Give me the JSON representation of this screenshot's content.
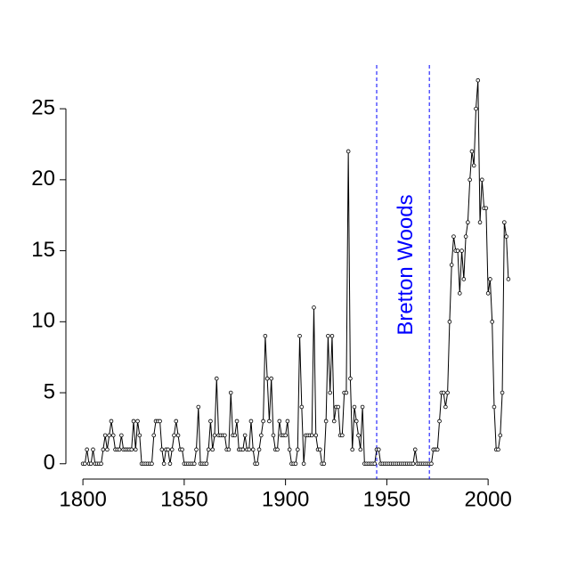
{
  "chart_data": {
    "type": "line",
    "x": [
      1800,
      1801,
      1802,
      1803,
      1804,
      1805,
      1806,
      1807,
      1808,
      1809,
      1810,
      1811,
      1812,
      1813,
      1814,
      1815,
      1816,
      1817,
      1818,
      1819,
      1820,
      1821,
      1822,
      1823,
      1824,
      1825,
      1826,
      1827,
      1828,
      1829,
      1830,
      1831,
      1832,
      1833,
      1834,
      1835,
      1836,
      1837,
      1838,
      1839,
      1840,
      1841,
      1842,
      1843,
      1844,
      1845,
      1846,
      1847,
      1848,
      1849,
      1850,
      1851,
      1852,
      1853,
      1854,
      1855,
      1856,
      1857,
      1858,
      1859,
      1860,
      1861,
      1862,
      1863,
      1864,
      1865,
      1866,
      1867,
      1868,
      1869,
      1870,
      1871,
      1872,
      1873,
      1874,
      1875,
      1876,
      1877,
      1878,
      1879,
      1880,
      1881,
      1882,
      1883,
      1884,
      1885,
      1886,
      1887,
      1888,
      1889,
      1890,
      1891,
      1892,
      1893,
      1894,
      1895,
      1896,
      1897,
      1898,
      1899,
      1900,
      1901,
      1902,
      1903,
      1904,
      1905,
      1906,
      1907,
      1908,
      1909,
      1910,
      1911,
      1912,
      1913,
      1914,
      1915,
      1916,
      1917,
      1918,
      1919,
      1920,
      1921,
      1922,
      1923,
      1924,
      1925,
      1926,
      1927,
      1928,
      1929,
      1930,
      1931,
      1932,
      1933,
      1934,
      1935,
      1936,
      1937,
      1938,
      1939,
      1940,
      1941,
      1942,
      1943,
      1944,
      1945,
      1946,
      1947,
      1948,
      1949,
      1950,
      1951,
      1952,
      1953,
      1954,
      1955,
      1956,
      1957,
      1958,
      1959,
      1960,
      1961,
      1962,
      1963,
      1964,
      1965,
      1966,
      1967,
      1968,
      1969,
      1970,
      1971,
      1972,
      1973,
      1974,
      1975,
      1976,
      1977,
      1978,
      1979,
      1980,
      1981,
      1982,
      1983,
      1984,
      1985,
      1986,
      1987,
      1988,
      1989,
      1990,
      1991,
      1992,
      1993,
      1994,
      1995,
      1996,
      1997,
      1998,
      1999,
      2000,
      2001,
      2002,
      2003,
      2004,
      2005,
      2006,
      2007,
      2008,
      2009,
      2010
    ],
    "values": [
      0,
      0,
      1,
      0,
      0,
      1,
      0,
      0,
      0,
      0,
      1,
      2,
      1,
      2,
      3,
      2,
      1,
      1,
      1,
      2,
      1,
      1,
      1,
      1,
      1,
      3,
      1,
      3,
      2,
      0,
      0,
      0,
      0,
      0,
      0,
      2,
      3,
      3,
      3,
      1,
      0,
      1,
      1,
      0,
      1,
      2,
      3,
      2,
      1,
      1,
      0,
      0,
      0,
      0,
      0,
      0,
      1,
      4,
      0,
      0,
      0,
      0,
      1,
      3,
      1,
      2,
      6,
      2,
      2,
      2,
      2,
      1,
      1,
      5,
      2,
      2,
      3,
      1,
      1,
      1,
      2,
      1,
      1,
      3,
      1,
      0,
      0,
      1,
      2,
      3,
      9,
      6,
      3,
      6,
      2,
      1,
      1,
      3,
      2,
      2,
      2,
      3,
      1,
      0,
      0,
      0,
      1,
      9,
      4,
      0,
      2,
      2,
      2,
      2,
      11,
      2,
      1,
      1,
      0,
      0,
      3,
      9,
      5,
      9,
      3,
      4,
      4,
      2,
      2,
      5,
      5,
      22,
      6,
      1,
      4,
      3,
      2,
      1,
      4,
      0,
      0,
      0,
      0,
      0,
      0,
      1,
      1,
      0,
      0,
      0,
      0,
      0,
      0,
      0,
      0,
      0,
      0,
      0,
      0,
      0,
      0,
      0,
      0,
      0,
      1,
      0,
      0,
      0,
      0,
      0,
      0,
      0,
      0,
      1,
      1,
      1,
      3,
      5,
      5,
      4,
      5,
      10,
      14,
      16,
      15,
      15,
      12,
      15,
      13,
      16,
      17,
      20,
      22,
      21,
      25,
      27,
      17,
      20,
      18,
      18,
      12,
      13,
      10,
      4,
      1,
      1,
      2,
      5,
      17,
      16,
      13
    ],
    "color": "#000000",
    "xlim": [
      1791.6,
      2018.4
    ],
    "xticks": [
      1800,
      1850,
      1900,
      1950,
      2000
    ],
    "ylim": [
      -1.08,
      28.08
    ],
    "yticks": [
      0,
      5,
      10,
      15,
      20,
      25
    ],
    "vlines": [
      1945,
      1971
    ],
    "vline_color": "#0000ff",
    "annotation": "Bretton Woods",
    "annotation_color": "#0000ff"
  }
}
